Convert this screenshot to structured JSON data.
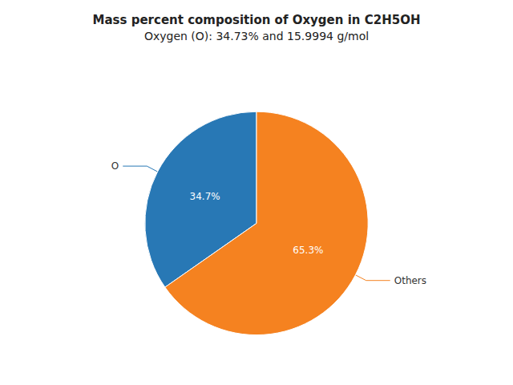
{
  "chart_data": {
    "type": "pie",
    "title": "Mass percent composition of Oxygen in C2H5OH",
    "subtitle": "Oxygen (O): 34.73% and 15.9994 g/mol",
    "categories": [
      "O",
      "Others"
    ],
    "values": [
      34.7,
      65.3
    ],
    "value_labels": [
      "34.7%",
      "65.3%"
    ],
    "colors": [
      "#2878b5",
      "#f58220"
    ],
    "counterclock": true,
    "data_labels": true
  }
}
